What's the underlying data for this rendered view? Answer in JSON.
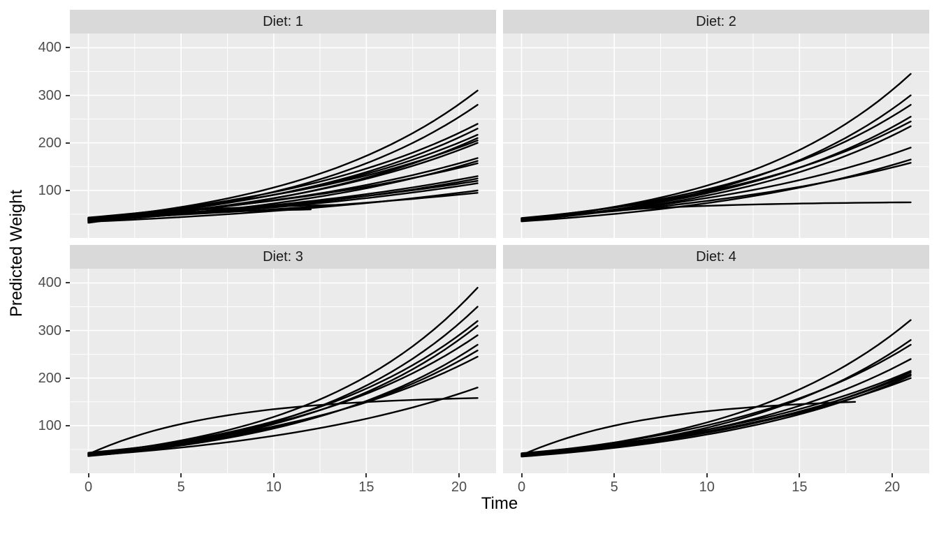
{
  "chart_data": {
    "type": "line",
    "title": "",
    "xlabel": "Time",
    "ylabel": "Predicted Weight",
    "x_ticks": [
      0,
      5,
      10,
      15,
      20
    ],
    "y_ticks": [
      100,
      200,
      300,
      400
    ],
    "x_domain": [
      -1,
      22
    ],
    "y_domain": [
      0,
      430
    ],
    "grid": true,
    "legend": "none",
    "style": {
      "panel_bg": "#EBEBEB",
      "strip_bg": "#D9D9D9",
      "grid_color": "#FFFFFF",
      "line_color": "#000000",
      "tick_text_color": "#4D4D4D"
    },
    "facets": [
      {
        "label": "Diet: 1",
        "lines": [
          {
            "t0": 0,
            "t1": 21,
            "w0": 40,
            "w1": 310,
            "shape": "exp"
          },
          {
            "t0": 0,
            "t1": 21,
            "w0": 37,
            "w1": 280,
            "shape": "exp"
          },
          {
            "t0": 0,
            "t1": 21,
            "w0": 42,
            "w1": 240,
            "shape": "exp"
          },
          {
            "t0": 0,
            "t1": 21,
            "w0": 39,
            "w1": 230,
            "shape": "exp"
          },
          {
            "t0": 0,
            "t1": 21,
            "w0": 41,
            "w1": 217,
            "shape": "exp"
          },
          {
            "t0": 0,
            "t1": 21,
            "w0": 36,
            "w1": 210,
            "shape": "exp"
          },
          {
            "t0": 0,
            "t1": 21,
            "w0": 43,
            "w1": 205,
            "shape": "exp"
          },
          {
            "t0": 0,
            "t1": 21,
            "w0": 38,
            "w1": 200,
            "shape": "exp"
          },
          {
            "t0": 0,
            "t1": 21,
            "w0": 40,
            "w1": 168,
            "shape": "exp"
          },
          {
            "t0": 0,
            "t1": 21,
            "w0": 35,
            "w1": 162,
            "shape": "exp"
          },
          {
            "t0": 0,
            "t1": 21,
            "w0": 42,
            "w1": 157,
            "shape": "exp"
          },
          {
            "t0": 0,
            "t1": 21,
            "w0": 39,
            "w1": 130,
            "shape": "exp"
          },
          {
            "t0": 0,
            "t1": 21,
            "w0": 37,
            "w1": 125,
            "shape": "exp"
          },
          {
            "t0": 0,
            "t1": 21,
            "w0": 41,
            "w1": 120,
            "shape": "exp"
          },
          {
            "t0": 0,
            "t1": 21,
            "w0": 38,
            "w1": 115,
            "shape": "exp"
          },
          {
            "t0": 0,
            "t1": 21,
            "w0": 34,
            "w1": 100,
            "shape": "exp"
          },
          {
            "t0": 0,
            "t1": 21,
            "w0": 40,
            "w1": 95,
            "shape": "exp"
          },
          {
            "t0": 0,
            "t1": 14,
            "w0": 39,
            "w1": 70,
            "shape": "sat"
          },
          {
            "t0": 0,
            "t1": 12,
            "w0": 36,
            "w1": 60,
            "shape": "sat"
          },
          {
            "t0": 0,
            "t1": 2,
            "w0": 32,
            "w1": 44,
            "shape": "exp"
          }
        ]
      },
      {
        "label": "Diet: 2",
        "lines": [
          {
            "t0": 0,
            "t1": 21,
            "w0": 39,
            "w1": 345,
            "shape": "exp"
          },
          {
            "t0": 0,
            "t1": 21,
            "w0": 36,
            "w1": 300,
            "shape": "exp"
          },
          {
            "t0": 0,
            "t1": 21,
            "w0": 41,
            "w1": 280,
            "shape": "exp"
          },
          {
            "t0": 0,
            "t1": 21,
            "w0": 38,
            "w1": 255,
            "shape": "exp"
          },
          {
            "t0": 0,
            "t1": 21,
            "w0": 42,
            "w1": 245,
            "shape": "exp"
          },
          {
            "t0": 0,
            "t1": 21,
            "w0": 37,
            "w1": 235,
            "shape": "exp"
          },
          {
            "t0": 0,
            "t1": 21,
            "w0": 40,
            "w1": 190,
            "shape": "exp"
          },
          {
            "t0": 0,
            "t1": 21,
            "w0": 35,
            "w1": 165,
            "shape": "exp"
          },
          {
            "t0": 0,
            "t1": 21,
            "w0": 41,
            "w1": 158,
            "shape": "exp"
          },
          {
            "t0": 0,
            "t1": 21,
            "w0": 38,
            "w1": 75,
            "shape": "sat"
          }
        ]
      },
      {
        "label": "Diet: 3",
        "lines": [
          {
            "t0": 0,
            "t1": 21,
            "w0": 40,
            "w1": 390,
            "shape": "exp"
          },
          {
            "t0": 0,
            "t1": 21,
            "w0": 37,
            "w1": 350,
            "shape": "exp"
          },
          {
            "t0": 0,
            "t1": 21,
            "w0": 41,
            "w1": 320,
            "shape": "exp"
          },
          {
            "t0": 0,
            "t1": 21,
            "w0": 38,
            "w1": 310,
            "shape": "exp"
          },
          {
            "t0": 0,
            "t1": 21,
            "w0": 42,
            "w1": 290,
            "shape": "exp"
          },
          {
            "t0": 0,
            "t1": 21,
            "w0": 36,
            "w1": 270,
            "shape": "exp"
          },
          {
            "t0": 0,
            "t1": 21,
            "w0": 39,
            "w1": 258,
            "shape": "exp"
          },
          {
            "t0": 0,
            "t1": 21,
            "w0": 43,
            "w1": 245,
            "shape": "exp"
          },
          {
            "t0": 0,
            "t1": 21,
            "w0": 37,
            "w1": 180,
            "shape": "exp"
          },
          {
            "t0": 0,
            "t1": 21,
            "w0": 40,
            "w1": 158,
            "shape": "sat"
          }
        ]
      },
      {
        "label": "Diet: 4",
        "lines": [
          {
            "t0": 0,
            "t1": 21,
            "w0": 39,
            "w1": 322,
            "shape": "exp"
          },
          {
            "t0": 0,
            "t1": 21,
            "w0": 36,
            "w1": 280,
            "shape": "exp"
          },
          {
            "t0": 0,
            "t1": 21,
            "w0": 41,
            "w1": 270,
            "shape": "exp"
          },
          {
            "t0": 0,
            "t1": 21,
            "w0": 38,
            "w1": 240,
            "shape": "exp"
          },
          {
            "t0": 0,
            "t1": 21,
            "w0": 42,
            "w1": 215,
            "shape": "exp"
          },
          {
            "t0": 0,
            "t1": 21,
            "w0": 37,
            "w1": 212,
            "shape": "exp"
          },
          {
            "t0": 0,
            "t1": 21,
            "w0": 40,
            "w1": 208,
            "shape": "exp"
          },
          {
            "t0": 0,
            "t1": 21,
            "w0": 35,
            "w1": 205,
            "shape": "exp"
          },
          {
            "t0": 0,
            "t1": 21,
            "w0": 41,
            "w1": 200,
            "shape": "exp"
          },
          {
            "t0": 0,
            "t1": 18,
            "w0": 38,
            "w1": 150,
            "shape": "sat"
          }
        ]
      }
    ]
  }
}
